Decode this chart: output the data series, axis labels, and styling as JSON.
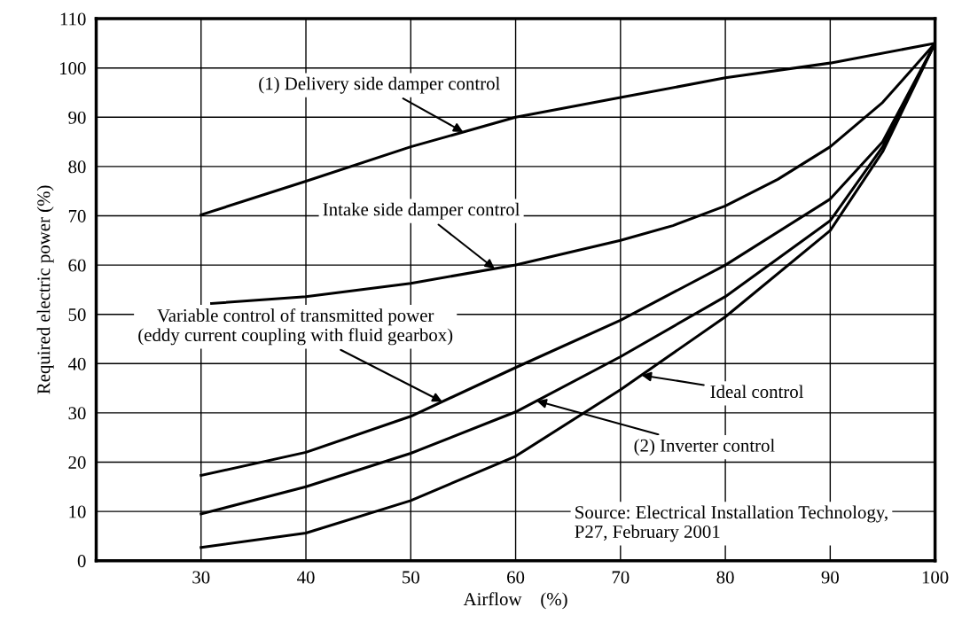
{
  "chart_data": {
    "type": "line",
    "xlabel": "Airflow    (%)",
    "ylabel": "Required electric power (%)",
    "xlim": [
      20,
      100
    ],
    "xticks": [
      30,
      40,
      50,
      60,
      70,
      80,
      90,
      100
    ],
    "ylim": [
      0,
      110
    ],
    "yticks": [
      0,
      10,
      20,
      30,
      40,
      50,
      60,
      70,
      80,
      90,
      100,
      110
    ],
    "grid": true,
    "legend": false,
    "marker": "none",
    "line_style": "solid",
    "series": [
      {
        "color": "#000000",
        "x": [
          30,
          40,
          50,
          60,
          70,
          80,
          90,
          100
        ],
        "values": [
          70.2,
          77,
          84,
          90,
          94,
          98,
          101,
          105
        ]
      },
      {
        "color": "#000000",
        "x": [
          31,
          40,
          50,
          60,
          70,
          75,
          80,
          85,
          90,
          95,
          100
        ],
        "values": [
          52.2,
          53.6,
          56.3,
          60,
          65,
          68,
          72,
          77.4,
          84,
          93,
          105
        ]
      },
      {
        "color": "#000000",
        "x": [
          30,
          40,
          50,
          60,
          70,
          80,
          90,
          95,
          100
        ],
        "values": [
          17.3,
          22,
          29.3,
          39.2,
          48.8,
          60,
          73.4,
          85,
          105
        ]
      },
      {
        "color": "#000000",
        "x": [
          30,
          40,
          50,
          60,
          70,
          80,
          90,
          95,
          100
        ],
        "values": [
          9.5,
          15,
          21.8,
          30.2,
          41.4,
          53.6,
          69,
          84,
          105
        ]
      },
      {
        "color": "#000000",
        "x": [
          30,
          40,
          50,
          60,
          70,
          80,
          90,
          95,
          100
        ],
        "values": [
          2.7,
          5.6,
          12.2,
          21.2,
          34.7,
          49.5,
          67,
          83,
          105
        ]
      }
    ],
    "annotations": [
      {
        "text": "(1) Delivery side damper control",
        "x": 55,
        "y": 87
      },
      {
        "text": "Intake side damper control",
        "x": 58,
        "y": 59.26
      },
      {
        "text": "Variable control of transmitted power\n(eddy current coupling with fluid gearbox)",
        "x": 53,
        "y": 32.27
      },
      {
        "text": "Ideal control",
        "x": 72,
        "y": 37.66
      },
      {
        "text": "(2) Inverter control",
        "x": 62,
        "y": 32.44
      },
      "Source: Electrical Installation Technology,\nP27, February 2001"
    ]
  }
}
